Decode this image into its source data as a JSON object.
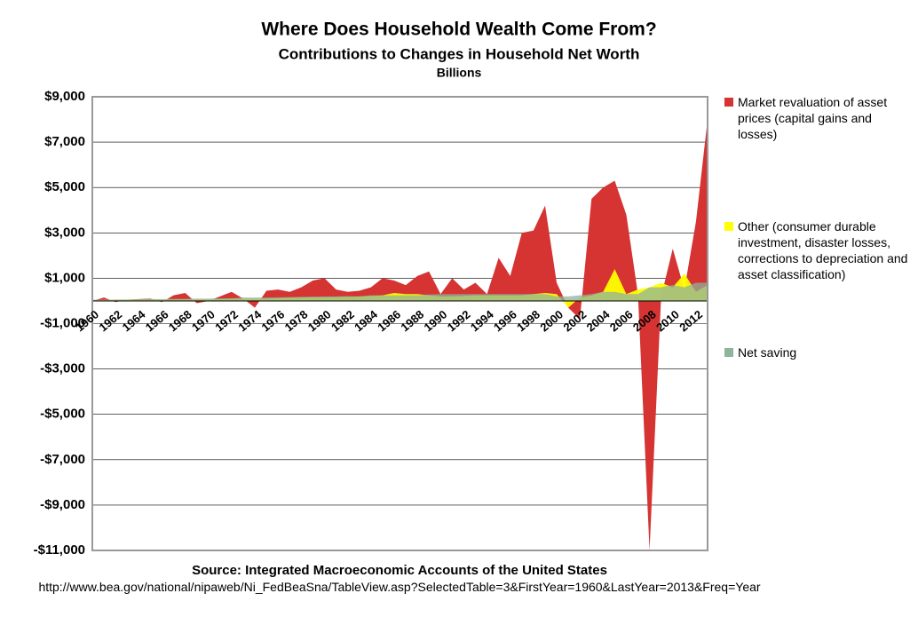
{
  "chart_data": {
    "type": "area",
    "title": "Where Does Household Wealth Come From?",
    "subtitle": "Contributions to Changes in Household Net Worth",
    "unit_label": "Billions",
    "source": "Source: Integrated Macroeconomic Accounts of the United States",
    "source_url": "http://www.bea.gov/national/nipaweb/Ni_FedBeaSna/TableView.asp?SelectedTable=3&FirstYear=1960&LastYear=2013&Freq=Year",
    "categories": [
      "1960",
      null,
      "1962",
      null,
      "1964",
      null,
      "1966",
      null,
      "1968",
      null,
      "1970",
      null,
      "1972",
      null,
      "1974",
      null,
      "1976",
      null,
      "1978",
      null,
      "1980",
      null,
      "1982",
      null,
      "1984",
      null,
      "1986",
      null,
      "1988",
      null,
      "1990",
      null,
      "1992",
      null,
      "1994",
      null,
      "1996",
      null,
      "1998",
      null,
      "2000",
      null,
      "2002",
      null,
      "2004",
      null,
      "2006",
      null,
      "2008",
      null,
      "2010",
      null,
      "2012",
      null
    ],
    "series": [
      {
        "name": "Market revaluation of asset prices (capital gains and losses)",
        "color": "#d63333",
        "values": [
          0,
          150,
          -50,
          50,
          80,
          100,
          -50,
          250,
          350,
          -100,
          0,
          200,
          400,
          100,
          -300,
          450,
          500,
          400,
          600,
          900,
          1000,
          500,
          400,
          450,
          600,
          1000,
          900,
          700,
          1100,
          1300,
          300,
          1000,
          500,
          800,
          300,
          1900,
          1100,
          3000,
          3100,
          4200,
          800,
          -300,
          -800,
          4500,
          5000,
          5300,
          3800,
          300,
          -11000,
          200,
          2300,
          500,
          3500,
          8000
        ]
      },
      {
        "name": "Other (consumer durable investment, disaster losses, corrections to depreciation and asset classification)",
        "color": "#ffff00",
        "values": [
          40,
          40,
          50,
          50,
          60,
          60,
          60,
          60,
          70,
          70,
          70,
          80,
          90,
          100,
          100,
          100,
          120,
          140,
          150,
          160,
          160,
          170,
          180,
          200,
          220,
          250,
          350,
          300,
          300,
          250,
          200,
          200,
          220,
          250,
          250,
          250,
          250,
          250,
          300,
          350,
          300,
          -300,
          150,
          250,
          400,
          1400,
          300,
          500,
          600,
          800,
          600,
          1200,
          400,
          700
        ]
      },
      {
        "name": "Net saving",
        "color": "#8fb39b",
        "values": [
          50,
          50,
          60,
          60,
          70,
          80,
          80,
          90,
          90,
          100,
          100,
          110,
          120,
          150,
          150,
          150,
          160,
          170,
          180,
          190,
          200,
          200,
          210,
          200,
          250,
          250,
          250,
          250,
          250,
          280,
          300,
          300,
          300,
          300,
          300,
          300,
          300,
          300,
          300,
          300,
          200,
          200,
          250,
          300,
          400,
          400,
          300,
          300,
          600,
          600,
          700,
          600,
          800,
          800
        ]
      }
    ],
    "ylim": [
      -11000,
      9000
    ],
    "yticks": [
      {
        "value": -11000,
        "label": "-$11,000"
      },
      {
        "value": -9000,
        "label": "-$9,000"
      },
      {
        "value": -7000,
        "label": "-$7,000"
      },
      {
        "value": -5000,
        "label": "-$5,000"
      },
      {
        "value": -3000,
        "label": "-$3,000"
      },
      {
        "value": -1000,
        "label": "-$1,000"
      },
      {
        "value": 1000,
        "label": "$1,000"
      },
      {
        "value": 3000,
        "label": "$3,000"
      },
      {
        "value": 5000,
        "label": "$5,000"
      },
      {
        "value": 7000,
        "label": "$7,000"
      },
      {
        "value": 9000,
        "label": "$9,000"
      }
    ],
    "grid": true
  }
}
